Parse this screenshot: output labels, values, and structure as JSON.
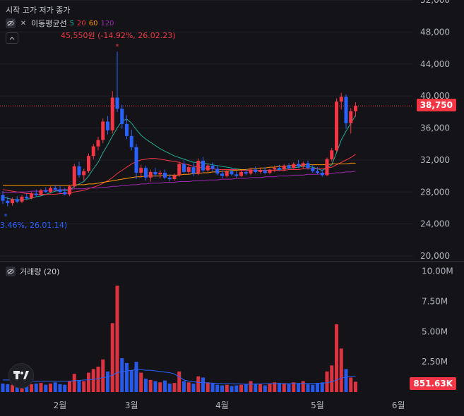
{
  "header": {
    "ohlc_title": "시작 고가 저가 종가",
    "indicator_name": "이동평균선",
    "ma_periods": [
      "5",
      "20",
      "60",
      "120"
    ],
    "ma_colors": [
      "#22ab94",
      "#f23645",
      "#ff9800",
      "#9c27b0"
    ],
    "volume_title": "거래량 (20)"
  },
  "annotations": {
    "high": "45,550원 (-14.92%, 26.02.23)",
    "low": "3.46%, 26.01.14)"
  },
  "last_price": "38,750",
  "last_volume": "851.63K",
  "colors": {
    "up": "#f23645",
    "down": "#2962ff",
    "background": "#141418"
  },
  "chart_data": [
    {
      "type": "candlestick",
      "price_axis": [
        "52,000",
        "48,000",
        "44,000",
        "40,000",
        "36,000",
        "32,000",
        "28,000",
        "24,000",
        "20,000"
      ],
      "ylim": [
        20000,
        52000
      ],
      "x_axis": [
        "2월",
        "3월",
        "4월",
        "5월",
        "6월"
      ],
      "high_value": 45550,
      "last_value": 38750,
      "candles": [
        {
          "o": 27600,
          "h": 28100,
          "l": 26500,
          "c": 26900
        },
        {
          "o": 26900,
          "h": 27400,
          "l": 26200,
          "c": 26600
        },
        {
          "o": 26600,
          "h": 27300,
          "l": 26300,
          "c": 27100
        },
        {
          "o": 27100,
          "h": 27500,
          "l": 26600,
          "c": 26800
        },
        {
          "o": 26800,
          "h": 27600,
          "l": 26600,
          "c": 27400
        },
        {
          "o": 27400,
          "h": 27800,
          "l": 27000,
          "c": 27200
        },
        {
          "o": 27200,
          "h": 28000,
          "l": 27100,
          "c": 27800
        },
        {
          "o": 27800,
          "h": 28300,
          "l": 27400,
          "c": 27600
        },
        {
          "o": 27600,
          "h": 28400,
          "l": 27500,
          "c": 28200
        },
        {
          "o": 28200,
          "h": 28600,
          "l": 27900,
          "c": 28000
        },
        {
          "o": 28000,
          "h": 28700,
          "l": 27800,
          "c": 28500
        },
        {
          "o": 28500,
          "h": 28900,
          "l": 28100,
          "c": 28300
        },
        {
          "o": 28300,
          "h": 28800,
          "l": 27800,
          "c": 28000
        },
        {
          "o": 28000,
          "h": 28500,
          "l": 27600,
          "c": 27700
        },
        {
          "o": 27700,
          "h": 28900,
          "l": 27500,
          "c": 28700
        },
        {
          "o": 28700,
          "h": 31500,
          "l": 28500,
          "c": 31200
        },
        {
          "o": 31200,
          "h": 31800,
          "l": 29800,
          "c": 30100
        },
        {
          "o": 30100,
          "h": 30900,
          "l": 29400,
          "c": 30600
        },
        {
          "o": 30600,
          "h": 32800,
          "l": 30400,
          "c": 32500
        },
        {
          "o": 32500,
          "h": 34000,
          "l": 32100,
          "c": 33700
        },
        {
          "o": 33700,
          "h": 34900,
          "l": 33200,
          "c": 34500
        },
        {
          "o": 34500,
          "h": 37200,
          "l": 34100,
          "c": 36800
        },
        {
          "o": 36800,
          "h": 37500,
          "l": 35200,
          "c": 35700
        },
        {
          "o": 35700,
          "h": 40600,
          "l": 35300,
          "c": 39800
        },
        {
          "o": 39800,
          "h": 45550,
          "l": 38000,
          "c": 38400
        },
        {
          "o": 38400,
          "h": 38900,
          "l": 35900,
          "c": 36500
        },
        {
          "o": 36500,
          "h": 37600,
          "l": 34600,
          "c": 35000
        },
        {
          "o": 35000,
          "h": 35800,
          "l": 33200,
          "c": 33600
        },
        {
          "o": 33600,
          "h": 34000,
          "l": 29600,
          "c": 30400
        },
        {
          "o": 30400,
          "h": 31400,
          "l": 29800,
          "c": 31000
        },
        {
          "o": 31000,
          "h": 31300,
          "l": 29400,
          "c": 29800
        },
        {
          "o": 29800,
          "h": 30800,
          "l": 29300,
          "c": 30500
        },
        {
          "o": 30500,
          "h": 31000,
          "l": 29900,
          "c": 30200
        },
        {
          "o": 30200,
          "h": 30700,
          "l": 29700,
          "c": 30400
        },
        {
          "o": 30400,
          "h": 30800,
          "l": 29600,
          "c": 29800
        },
        {
          "o": 29800,
          "h": 30200,
          "l": 29300,
          "c": 29600
        },
        {
          "o": 29600,
          "h": 30300,
          "l": 29400,
          "c": 30100
        },
        {
          "o": 30100,
          "h": 31800,
          "l": 29900,
          "c": 31500
        },
        {
          "o": 31500,
          "h": 31900,
          "l": 30300,
          "c": 30500
        },
        {
          "o": 30500,
          "h": 31400,
          "l": 30200,
          "c": 31100
        },
        {
          "o": 31100,
          "h": 31600,
          "l": 30000,
          "c": 30300
        },
        {
          "o": 30300,
          "h": 32200,
          "l": 30100,
          "c": 31900
        },
        {
          "o": 31900,
          "h": 32400,
          "l": 30400,
          "c": 30700
        },
        {
          "o": 30700,
          "h": 31600,
          "l": 30500,
          "c": 31300
        },
        {
          "o": 31300,
          "h": 31700,
          "l": 30600,
          "c": 30900
        },
        {
          "o": 30900,
          "h": 31300,
          "l": 30100,
          "c": 30300
        },
        {
          "o": 30300,
          "h": 30700,
          "l": 29700,
          "c": 30000
        },
        {
          "o": 30000,
          "h": 30800,
          "l": 29800,
          "c": 30600
        },
        {
          "o": 30600,
          "h": 31000,
          "l": 30000,
          "c": 30200
        },
        {
          "o": 30200,
          "h": 30600,
          "l": 29800,
          "c": 30000
        },
        {
          "o": 30000,
          "h": 30700,
          "l": 29900,
          "c": 30500
        },
        {
          "o": 30500,
          "h": 30900,
          "l": 30100,
          "c": 30300
        },
        {
          "o": 30300,
          "h": 31000,
          "l": 30100,
          "c": 30800
        },
        {
          "o": 30800,
          "h": 31200,
          "l": 30300,
          "c": 30500
        },
        {
          "o": 30500,
          "h": 31000,
          "l": 30300,
          "c": 30700
        },
        {
          "o": 30700,
          "h": 31100,
          "l": 30200,
          "c": 30400
        },
        {
          "o": 30400,
          "h": 30900,
          "l": 30200,
          "c": 30800
        },
        {
          "o": 30800,
          "h": 31300,
          "l": 30500,
          "c": 31000
        },
        {
          "o": 31000,
          "h": 31400,
          "l": 30600,
          "c": 30800
        },
        {
          "o": 30800,
          "h": 31500,
          "l": 30600,
          "c": 31300
        },
        {
          "o": 31300,
          "h": 31600,
          "l": 30800,
          "c": 31000
        },
        {
          "o": 31000,
          "h": 31700,
          "l": 30900,
          "c": 31500
        },
        {
          "o": 31500,
          "h": 32000,
          "l": 31000,
          "c": 31200
        },
        {
          "o": 31200,
          "h": 31800,
          "l": 30900,
          "c": 31600
        },
        {
          "o": 31600,
          "h": 31900,
          "l": 30800,
          "c": 31000
        },
        {
          "o": 31000,
          "h": 31400,
          "l": 30400,
          "c": 30600
        },
        {
          "o": 30600,
          "h": 31100,
          "l": 30200,
          "c": 30400
        },
        {
          "o": 30400,
          "h": 30800,
          "l": 29900,
          "c": 30100
        },
        {
          "o": 30100,
          "h": 32300,
          "l": 30000,
          "c": 32100
        },
        {
          "o": 32100,
          "h": 33500,
          "l": 31800,
          "c": 33200
        },
        {
          "o": 33200,
          "h": 39700,
          "l": 33000,
          "c": 39300
        },
        {
          "o": 39300,
          "h": 40400,
          "l": 38300,
          "c": 39900
        },
        {
          "o": 39900,
          "h": 40200,
          "l": 35900,
          "c": 36600
        },
        {
          "o": 36600,
          "h": 38500,
          "l": 35300,
          "c": 38100
        },
        {
          "o": 38100,
          "h": 39200,
          "l": 37400,
          "c": 38750
        }
      ],
      "ma5": [
        27400,
        27200,
        27100,
        27000,
        27000,
        27100,
        27200,
        27400,
        27500,
        27700,
        27900,
        28100,
        28200,
        28200,
        28200,
        28700,
        29000,
        29300,
        30000,
        30900,
        31700,
        32900,
        33900,
        35000,
        36000,
        36900,
        37100,
        36600,
        35800,
        35100,
        34600,
        34200,
        33800,
        33400,
        33100,
        32800,
        32500,
        32300,
        32100,
        31900,
        31700,
        31700,
        31600,
        31500,
        31400,
        31300,
        31200,
        31100,
        31000,
        30900,
        30800,
        30700,
        30700,
        30700,
        30700,
        30700,
        30700,
        30700,
        30800,
        30900,
        31000,
        31000,
        31100,
        31200,
        31200,
        31100,
        30900,
        30700,
        31000,
        31400,
        32900,
        34500,
        35600,
        36600,
        37600
      ],
      "ma20": [
        28300,
        28200,
        28100,
        28000,
        27900,
        27800,
        27800,
        27700,
        27700,
        27700,
        27700,
        27700,
        27800,
        27800,
        27900,
        28000,
        28100,
        28200,
        28400,
        28600,
        28800,
        29100,
        29400,
        29800,
        30300,
        30700,
        31100,
        31500,
        31800,
        32000,
        32100,
        32200,
        32200,
        32100,
        32000,
        31900,
        31800,
        31700,
        31500,
        31400,
        31200,
        31100,
        31000,
        30900,
        30900,
        30800,
        30800,
        30800,
        30800,
        30800,
        30700,
        30700,
        30700,
        30700,
        30700,
        30700,
        30700,
        30700,
        30700,
        30700,
        30800,
        30800,
        30800,
        30900,
        30900,
        30900,
        30900,
        30900,
        31000,
        31100,
        31400,
        31700,
        32000,
        32300,
        32700
      ],
      "ma60": [
        28800,
        28800,
        28800,
        28800,
        28800,
        28800,
        28800,
        28800,
        28800,
        28800,
        28800,
        28800,
        28800,
        28800,
        28800,
        28900,
        28900,
        28900,
        29000,
        29000,
        29100,
        29200,
        29300,
        29400,
        29500,
        29600,
        29700,
        29800,
        29900,
        29900,
        30000,
        30000,
        30000,
        30000,
        30100,
        30100,
        30100,
        30100,
        30200,
        30200,
        30300,
        30300,
        30400,
        30400,
        30500,
        30500,
        30600,
        30600,
        30700,
        30700,
        30800,
        30800,
        30900,
        30900,
        31000,
        31000,
        31100,
        31100,
        31200,
        31200,
        31300,
        31300,
        31300,
        31400,
        31400,
        31400,
        31400,
        31400,
        31400,
        31500,
        31500,
        31500,
        31500,
        31600,
        31600
      ],
      "ma120": [
        27900,
        27900,
        27900,
        28000,
        28000,
        28000,
        28100,
        28100,
        28100,
        28200,
        28200,
        28200,
        28300,
        28300,
        28300,
        28400,
        28400,
        28400,
        28500,
        28500,
        28500,
        28600,
        28600,
        28700,
        28700,
        28800,
        28800,
        28900,
        28900,
        29000,
        29000,
        29100,
        29100,
        29100,
        29200,
        29200,
        29200,
        29300,
        29300,
        29300,
        29400,
        29400,
        29400,
        29500,
        29500,
        29500,
        29600,
        29600,
        29600,
        29700,
        29700,
        29700,
        29800,
        29800,
        29800,
        29900,
        29900,
        29900,
        30000,
        30000,
        30000,
        30100,
        30100,
        30100,
        30200,
        30200,
        30200,
        30300,
        30300,
        30300,
        30400,
        30400,
        30500,
        30500,
        30600
      ],
      "volume_axis": [
        "10.00M",
        "7.50M",
        "5.00M",
        "2.50M"
      ],
      "volume_ylim": [
        0,
        10500000
      ],
      "volume_up": [
        false,
        false,
        true,
        false,
        true,
        false,
        true,
        false,
        true,
        false,
        true,
        false,
        false,
        false,
        true,
        true,
        false,
        true,
        true,
        true,
        true,
        true,
        false,
        true,
        true,
        false,
        false,
        false,
        false,
        true,
        false,
        true,
        false,
        true,
        false,
        false,
        true,
        true,
        false,
        true,
        false,
        true,
        false,
        true,
        false,
        false,
        false,
        true,
        false,
        false,
        true,
        false,
        true,
        false,
        true,
        false,
        true,
        true,
        false,
        true,
        false,
        true,
        false,
        true,
        false,
        false,
        false,
        false,
        true,
        true,
        true,
        true,
        false,
        true,
        true
      ],
      "volume": [
        700000,
        650000,
        600000,
        700000,
        800000,
        600000,
        650000,
        700000,
        750000,
        600000,
        700000,
        800000,
        650000,
        600000,
        900000,
        1500000,
        1000000,
        900000,
        1600000,
        1900000,
        2100000,
        2700000,
        1700000,
        5700000,
        8800000,
        2800000,
        2400000,
        1800000,
        2500000,
        1600000,
        1100000,
        1000000,
        900000,
        800000,
        950000,
        700000,
        750000,
        1700000,
        900000,
        800000,
        700000,
        1300000,
        1200000,
        800000,
        700000,
        600000,
        550000,
        600000,
        500000,
        550000,
        600000,
        650000,
        900000,
        700000,
        650000,
        550000,
        700000,
        800000,
        750000,
        700000,
        650000,
        800000,
        700000,
        900000,
        650000,
        600000,
        700000,
        800000,
        1700000,
        2200000,
        5600000,
        3600000,
        1900000,
        1200000,
        850000
      ],
      "volume_ma": [
        1000000,
        1000000,
        1000000,
        950000,
        950000,
        950000,
        900000,
        900000,
        900000,
        900000,
        900000,
        900000,
        900000,
        900000,
        900000,
        950000,
        950000,
        1000000,
        1000000,
        1050000,
        1100000,
        1200000,
        1250000,
        1400000,
        1600000,
        1700000,
        1750000,
        1800000,
        1850000,
        1850000,
        1800000,
        1800000,
        1750000,
        1700000,
        1650000,
        1600000,
        1500000,
        1250000,
        1000000,
        900000,
        850000,
        800000,
        780000,
        760000,
        740000,
        720000,
        700000,
        690000,
        680000,
        670000,
        660000,
        650000,
        650000,
        660000,
        670000,
        680000,
        690000,
        700000,
        700000,
        700000,
        700000,
        710000,
        710000,
        720000,
        720000,
        720000,
        720000,
        730000,
        780000,
        850000,
        1000000,
        1150000,
        1250000,
        1300000,
        1330000
      ]
    }
  ]
}
